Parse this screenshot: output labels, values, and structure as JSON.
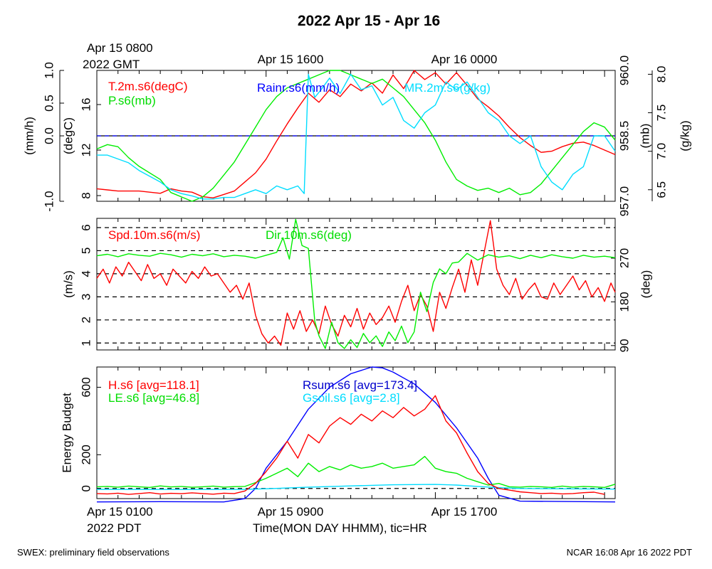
{
  "title": "2022 Apr 15 - Apr 16",
  "footer": {
    "left": "SWEX: preliminary field observations",
    "right": "NCAR 16:08 Apr 16 2022 PDT"
  },
  "top_axis": {
    "start_line1": "Apr 15 0800",
    "start_line2": "2022 GMT",
    "ticks": [
      "Apr 15 1600",
      "Apr 16 0000"
    ]
  },
  "bottom_axis": {
    "start_line1": "Apr 15 0100",
    "start_line2": "2022 PDT",
    "ticks": [
      "Apr 15 0900",
      "Apr 15 1700"
    ],
    "label": "Time(MON DAY HHMM), tic=HR"
  },
  "chart_data": [
    {
      "type": "line",
      "panel": "top",
      "x_unit": "hours since Apr 15 0100 PDT",
      "xlim": [
        0,
        24.5
      ],
      "grid": false,
      "axes": {
        "rain": {
          "label": "(mm/h)",
          "ylim": [
            -1.0,
            1.0
          ],
          "ticks": [
            "-1.0",
            "0.0",
            "0.5",
            "1.0"
          ],
          "side": "left-outer"
        },
        "temp": {
          "label": "(degC)",
          "ylim": [
            7.5,
            19.0
          ],
          "ticks": [
            "8",
            "12",
            "16"
          ],
          "side": "left-inner"
        },
        "pres": {
          "label": "(mb)",
          "ylim": [
            957.0,
            960.0
          ],
          "ticks": [
            "957.0",
            "958.5",
            "960.0"
          ],
          "side": "right-inner"
        },
        "mr": {
          "label": "(g/kg)",
          "ylim": [
            6.35,
            8.05
          ],
          "ticks": [
            "6.5",
            "7.0",
            "7.5",
            "8.0"
          ],
          "side": "right-outer"
        }
      },
      "series": [
        {
          "name": "T.2m.s6(degC)",
          "color": "#ff0000",
          "axis": "temp",
          "x": [
            0,
            0.5,
            1,
            2,
            3,
            3.5,
            4,
            4.5,
            5,
            5.5,
            6,
            6.5,
            7,
            7.5,
            8,
            8.5,
            9,
            9.5,
            10,
            10.5,
            11,
            11.5,
            12,
            12.5,
            13,
            13.5,
            14,
            14.5,
            15,
            15.5,
            16,
            16.5,
            17,
            17.5,
            18,
            18.5,
            19,
            19.5,
            20,
            20.5,
            21,
            21.5,
            22,
            22.5,
            23,
            23.5,
            24,
            24.5
          ],
          "y": [
            8.6,
            8.5,
            8.4,
            8.4,
            8.2,
            8.6,
            8.4,
            8.3,
            7.9,
            7.8,
            8.1,
            8.4,
            9.2,
            10.0,
            11.2,
            12.8,
            14.3,
            15.7,
            17.0,
            16.2,
            17.3,
            16.7,
            17.8,
            17.2,
            17.9,
            17.0,
            18.6,
            17.4,
            19.0,
            18.2,
            18.8,
            17.8,
            18.8,
            17.7,
            16.5,
            15.8,
            15.0,
            14.0,
            13.1,
            12.4,
            11.8,
            11.9,
            12.3,
            12.6,
            12.7,
            12.4,
            12.0,
            11.6
          ]
        },
        {
          "name": "P.s6(mb)",
          "color": "#00ee00",
          "axis": "pres",
          "x": [
            0,
            0.5,
            1,
            1.5,
            2,
            3,
            3.5,
            4,
            4.5,
            5,
            5.5,
            6,
            6.5,
            7,
            7.5,
            8,
            8.5,
            9,
            9.5,
            10,
            10.5,
            11,
            11.5,
            12,
            12.5,
            13,
            13.5,
            14,
            14.5,
            15,
            15.5,
            16,
            16.5,
            17,
            17.5,
            18,
            18.5,
            19,
            19.5,
            20,
            20.5,
            21,
            21.5,
            22,
            22.5,
            23,
            23.5,
            24,
            24.5
          ],
          "y": [
            958.2,
            958.3,
            958.25,
            958.0,
            957.8,
            957.5,
            957.2,
            957.1,
            957.0,
            957.1,
            957.3,
            957.6,
            957.9,
            958.3,
            958.7,
            959.1,
            959.4,
            959.6,
            959.7,
            959.8,
            959.9,
            960.0,
            960.0,
            959.9,
            959.8,
            959.7,
            959.8,
            959.6,
            959.4,
            959.1,
            958.8,
            958.4,
            957.9,
            957.5,
            957.35,
            957.25,
            957.3,
            957.2,
            957.3,
            957.15,
            957.2,
            957.4,
            957.7,
            958.0,
            958.3,
            958.6,
            958.8,
            958.7,
            958.4
          ]
        },
        {
          "name": "MR.2m.s6(g/kg)",
          "color": "#00ddff",
          "axis": "mr",
          "x": [
            0,
            0.5,
            1,
            1.5,
            2,
            3,
            3.5,
            4,
            4.5,
            5,
            5.5,
            6,
            6.5,
            7,
            7.5,
            8,
            8.5,
            9,
            9.5,
            9.8,
            10.0,
            10.3,
            10.6,
            11,
            11.5,
            12,
            12.5,
            13,
            13.5,
            14,
            14.5,
            15,
            15.5,
            16,
            16.5,
            17,
            17.5,
            18,
            18.5,
            19,
            19.5,
            20,
            20.5,
            21,
            21.5,
            22,
            22.5,
            23,
            23.5,
            24,
            24.5
          ],
          "y": [
            6.95,
            6.95,
            6.9,
            6.85,
            6.75,
            6.6,
            6.5,
            6.45,
            6.42,
            6.38,
            6.38,
            6.4,
            6.4,
            6.45,
            6.5,
            6.45,
            6.55,
            6.5,
            6.55,
            6.45,
            8.0,
            7.7,
            7.8,
            7.95,
            7.75,
            8.0,
            7.8,
            7.85,
            7.6,
            7.7,
            7.4,
            7.3,
            7.5,
            7.6,
            7.9,
            7.8,
            7.9,
            7.7,
            7.5,
            7.4,
            7.2,
            7.1,
            7.2,
            6.8,
            6.6,
            6.5,
            6.7,
            6.8,
            7.2,
            7.2,
            7.0
          ]
        },
        {
          "name": "Rainr.s6(mm/h)",
          "color": "#0000ff",
          "axis": "rain",
          "x": [
            0,
            24.5
          ],
          "y": [
            0.0,
            0.0
          ]
        }
      ],
      "reference_lines": [
        {
          "axis": "rain",
          "value": 0.0,
          "style": "solid",
          "color": "#000000"
        },
        {
          "axis": "rain",
          "value": 0.0,
          "style": "dashed",
          "color": "#0000ff"
        }
      ]
    },
    {
      "type": "line",
      "panel": "middle",
      "x_unit": "hours since Apr 15 0100 PDT",
      "xlim": [
        0,
        24.5
      ],
      "grid": "dashed horizontal at 1,2,3,4,5,6 m/s",
      "axes": {
        "spd": {
          "label": "(m/s)",
          "ylim": [
            0.7,
            6.4
          ],
          "ticks": [
            "1",
            "2",
            "3",
            "4",
            "5",
            "6"
          ],
          "side": "left"
        },
        "dir": {
          "label": "(deg)",
          "ylim": [
            81,
            352
          ],
          "ticks": [
            "90",
            "180",
            "270"
          ],
          "side": "right"
        }
      },
      "series": [
        {
          "name": "Spd.10m.s6(m/s)",
          "color": "#ff0000",
          "axis": "spd",
          "x": [
            0,
            0.3,
            0.6,
            0.9,
            1.2,
            1.5,
            1.8,
            2.1,
            2.4,
            2.7,
            3,
            3.3,
            3.6,
            3.9,
            4.2,
            4.5,
            4.8,
            5.1,
            5.4,
            5.7,
            6,
            6.3,
            6.6,
            6.9,
            7.2,
            7.5,
            7.8,
            8.1,
            8.4,
            8.7,
            9,
            9.3,
            9.6,
            9.9,
            10.2,
            10.5,
            10.8,
            11.1,
            11.4,
            11.7,
            12,
            12.3,
            12.6,
            12.9,
            13.2,
            13.5,
            13.8,
            14.1,
            14.4,
            14.7,
            15,
            15.3,
            15.6,
            15.9,
            16.2,
            16.5,
            16.8,
            17.1,
            17.4,
            17.7,
            18,
            18.3,
            18.6,
            18.9,
            19.2,
            19.5,
            19.8,
            20.1,
            20.4,
            20.7,
            21,
            21.3,
            21.6,
            21.9,
            22.2,
            22.5,
            22.8,
            23.1,
            23.4,
            23.7,
            24,
            24.3,
            24.5
          ],
          "y": [
            3.8,
            4.2,
            3.6,
            4.3,
            3.9,
            4.5,
            4.1,
            3.7,
            4.4,
            3.8,
            4.0,
            3.5,
            4.2,
            3.9,
            3.6,
            4.1,
            3.8,
            4.3,
            3.9,
            4.0,
            3.6,
            3.2,
            3.5,
            2.9,
            3.6,
            2.2,
            1.4,
            1.0,
            1.3,
            0.9,
            2.3,
            1.6,
            2.4,
            1.5,
            2.0,
            1.4,
            2.6,
            1.8,
            1.3,
            2.2,
            1.7,
            2.5,
            1.6,
            2.3,
            1.8,
            2.1,
            2.6,
            1.9,
            2.8,
            3.5,
            2.4,
            3.1,
            2.6,
            1.5,
            3.2,
            2.5,
            3.4,
            4.2,
            3.2,
            4.6,
            3.5,
            4.9,
            6.3,
            4.2,
            3.5,
            3.1,
            3.8,
            2.9,
            3.3,
            3.6,
            3.0,
            2.9,
            3.6,
            3.1,
            3.5,
            3.9,
            3.3,
            3.7,
            3.0,
            3.4,
            2.8,
            3.6,
            3.2
          ]
        },
        {
          "name": "Dir.10m.s6(deg)",
          "color": "#00ee00",
          "axis": "dir",
          "x": [
            0,
            0.5,
            1,
            1.5,
            2,
            2.5,
            3,
            3.5,
            4,
            4.5,
            5,
            5.5,
            6,
            6.5,
            7,
            7.5,
            8,
            8.5,
            8.8,
            9.1,
            9.4,
            9.7,
            10,
            10.3,
            10.5,
            10.8,
            11.1,
            11.4,
            11.7,
            12,
            12.3,
            12.6,
            12.9,
            13.2,
            13.5,
            13.8,
            14.1,
            14.4,
            14.7,
            15,
            15.3,
            15.6,
            15.9,
            16.2,
            16.5,
            16.8,
            17.1,
            17.5,
            18,
            18.5,
            19,
            19.5,
            20,
            20.5,
            21,
            21.5,
            22,
            22.5,
            23,
            23.5,
            24,
            24.5
          ],
          "y": [
            275,
            278,
            273,
            279,
            276,
            274,
            280,
            277,
            272,
            278,
            275,
            279,
            273,
            276,
            274,
            270,
            276,
            282,
            312,
            268,
            350,
            296,
            290,
            140,
            110,
            84,
            138,
            96,
            84,
            102,
            86,
            115,
            96,
            110,
            88,
            118,
            100,
            130,
            96,
            118,
            200,
            160,
            220,
            248,
            238,
            260,
            262,
            280,
            266,
            277,
            272,
            275,
            269,
            276,
            271,
            277,
            273,
            270,
            276,
            272,
            274,
            271
          ]
        }
      ]
    },
    {
      "type": "line",
      "panel": "bottom",
      "x_unit": "hours since Apr 15 0100 PDT",
      "xlim": [
        0,
        24.5
      ],
      "ylabel": "Energy Budget",
      "ylim": [
        -60,
        720
      ],
      "yticks": [
        "0",
        "200",
        "600"
      ],
      "grid": false,
      "reference_lines": [
        {
          "value": 0,
          "style": "dashed",
          "color": "#000000"
        }
      ],
      "series": [
        {
          "name": "H.s6 [avg=118.1]",
          "color": "#ff0000",
          "x": [
            0,
            0.5,
            1,
            1.5,
            2,
            2.5,
            3,
            3.5,
            4,
            4.5,
            5,
            5.5,
            6,
            6.5,
            7,
            7.5,
            8,
            8.5,
            9,
            9.5,
            10,
            10.5,
            11,
            11.5,
            12,
            12.5,
            13,
            13.5,
            14,
            14.5,
            15,
            15.5,
            16,
            16.5,
            17,
            17.5,
            18,
            18.5,
            19,
            19.5,
            20,
            20.5,
            21,
            21.5,
            22,
            22.5,
            23,
            23.5,
            24
          ],
          "y": [
            -30,
            -32,
            -28,
            -35,
            -30,
            -25,
            -33,
            -29,
            -31,
            -26,
            -30,
            -34,
            -28,
            -30,
            -15,
            30,
            100,
            180,
            280,
            180,
            320,
            270,
            370,
            420,
            380,
            440,
            400,
            460,
            420,
            480,
            430,
            470,
            550,
            400,
            330,
            210,
            100,
            30,
            0,
            -10,
            -20,
            -25,
            -30,
            -28,
            -32,
            -30,
            -25,
            -22,
            -35
          ]
        },
        {
          "name": "LE.s6 [avg=46.8]",
          "color": "#00ee00",
          "x": [
            0,
            0.5,
            1,
            1.5,
            2,
            2.5,
            3,
            3.5,
            4,
            4.5,
            5,
            5.5,
            6,
            6.5,
            7,
            7.5,
            8,
            8.5,
            9,
            9.5,
            10,
            10.5,
            11,
            11.5,
            12,
            12.5,
            13,
            13.5,
            14,
            14.5,
            15,
            15.5,
            16,
            16.5,
            17,
            17.5,
            18,
            18.5,
            19,
            19.5,
            20,
            20.5,
            21,
            21.5,
            22,
            22.5,
            23,
            23.5,
            24,
            24.5
          ],
          "y": [
            10,
            12,
            8,
            14,
            10,
            6,
            15,
            9,
            12,
            7,
            10,
            14,
            8,
            11,
            12,
            35,
            60,
            90,
            120,
            70,
            150,
            100,
            130,
            110,
            140,
            120,
            130,
            150,
            120,
            130,
            140,
            190,
            120,
            100,
            90,
            60,
            40,
            20,
            30,
            10,
            8,
            12,
            10,
            6,
            14,
            8,
            12,
            10,
            6,
            25
          ]
        },
        {
          "name": "Rsum.s6 [avg=173.4]",
          "color": "#0000ff",
          "x": [
            0,
            3,
            6,
            7,
            7.5,
            8,
            9,
            10,
            11,
            12,
            13,
            13.5,
            14,
            15,
            16,
            17,
            18,
            18.5,
            19,
            20,
            24.5
          ],
          "y": [
            -80,
            -78,
            -80,
            -60,
            0,
            120,
            280,
            470,
            600,
            680,
            720,
            715,
            690,
            620,
            510,
            360,
            180,
            60,
            -40,
            -75,
            -80
          ]
        },
        {
          "name": "Gsoil.s6 [avg=2.8]",
          "color": "#00ddff",
          "x": [
            0,
            4,
            7,
            8,
            10,
            12,
            14,
            16,
            17,
            18,
            19,
            20,
            24.5
          ],
          "y": [
            -5,
            -6,
            -5,
            -2,
            8,
            15,
            22,
            24,
            20,
            12,
            5,
            0,
            -4
          ]
        }
      ]
    }
  ]
}
